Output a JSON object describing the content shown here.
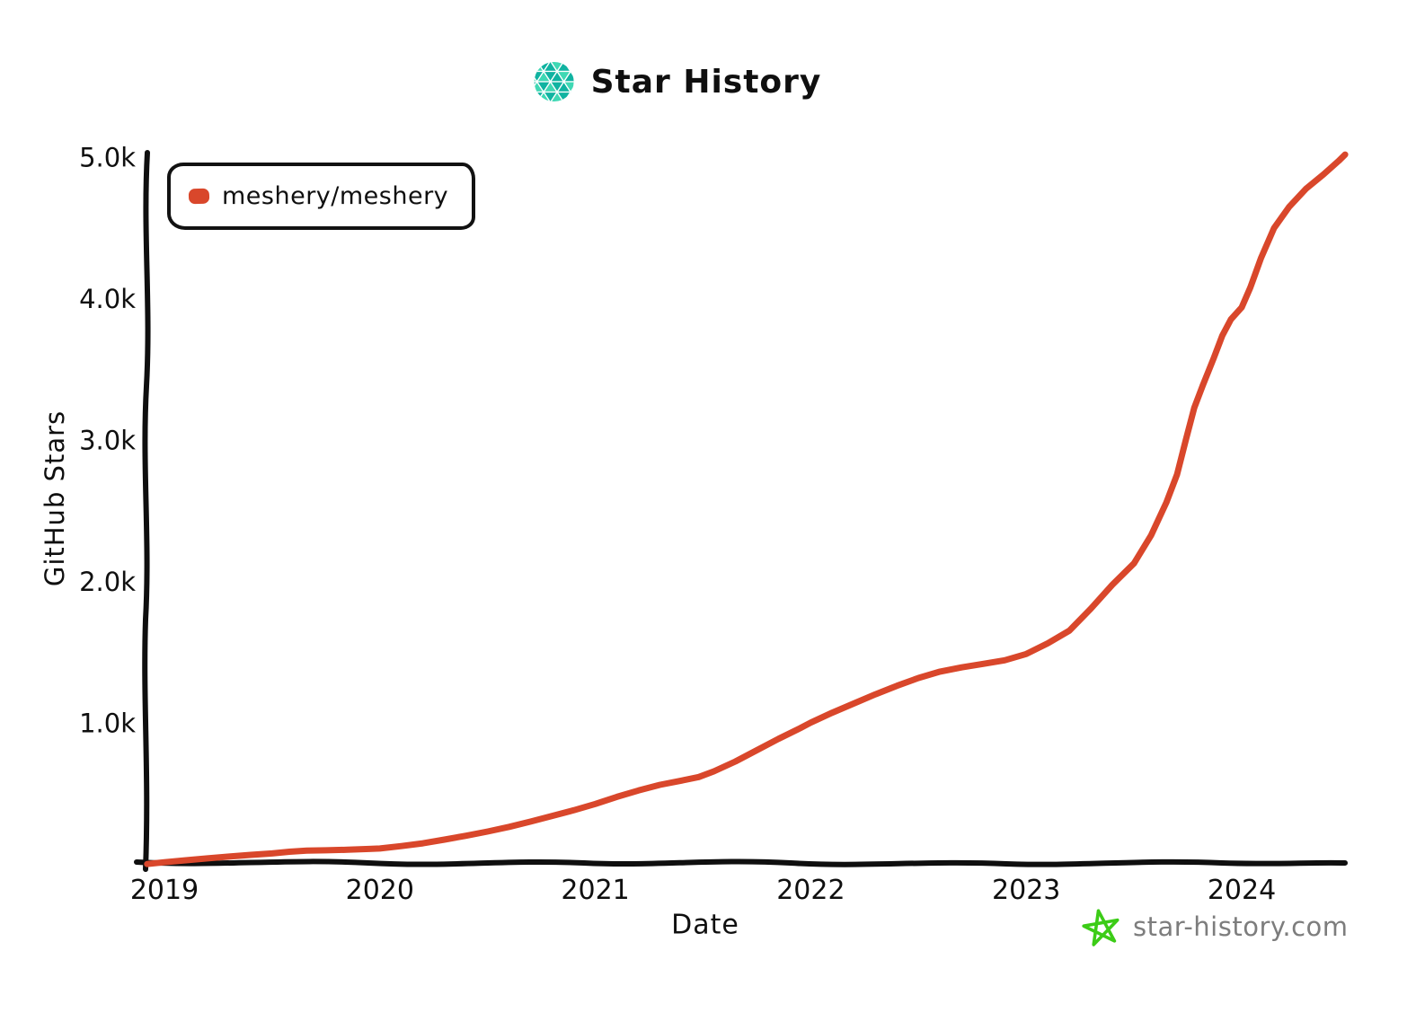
{
  "chart_data": {
    "type": "line",
    "title": "Star History",
    "xlabel": "Date",
    "ylabel": "GitHub Stars",
    "grid": false,
    "legend_position": "top-left",
    "xlim": [
      2018.92,
      2024.55
    ],
    "ylim": [
      0,
      5080
    ],
    "x_ticks": [
      {
        "label": "2019",
        "value": 2019
      },
      {
        "label": "2020",
        "value": 2020
      },
      {
        "label": "2021",
        "value": 2021
      },
      {
        "label": "2022",
        "value": 2022
      },
      {
        "label": "2023",
        "value": 2023
      },
      {
        "label": "2024",
        "value": 2024
      }
    ],
    "y_ticks": [
      {
        "label": "1.0k",
        "value": 1000
      },
      {
        "label": "2.0k",
        "value": 2000
      },
      {
        "label": "3.0k",
        "value": 3000
      },
      {
        "label": "4.0k",
        "value": 4000
      },
      {
        "label": "5.0k",
        "value": 5000
      }
    ],
    "series": [
      {
        "name": "meshery/meshery",
        "color": "#d9472b",
        "points": [
          [
            2018.92,
            5
          ],
          [
            2019.0,
            18
          ],
          [
            2019.1,
            32
          ],
          [
            2019.2,
            45
          ],
          [
            2019.3,
            58
          ],
          [
            2019.4,
            70
          ],
          [
            2019.5,
            80
          ],
          [
            2019.58,
            92
          ],
          [
            2019.66,
            100
          ],
          [
            2019.75,
            102
          ],
          [
            2019.85,
            106
          ],
          [
            2019.95,
            112
          ],
          [
            2020.0,
            115
          ],
          [
            2020.1,
            132
          ],
          [
            2020.2,
            152
          ],
          [
            2020.3,
            178
          ],
          [
            2020.4,
            205
          ],
          [
            2020.5,
            235
          ],
          [
            2020.6,
            268
          ],
          [
            2020.7,
            305
          ],
          [
            2020.8,
            345
          ],
          [
            2020.9,
            385
          ],
          [
            2021.0,
            430
          ],
          [
            2021.1,
            480
          ],
          [
            2021.2,
            525
          ],
          [
            2021.3,
            565
          ],
          [
            2021.4,
            595
          ],
          [
            2021.48,
            620
          ],
          [
            2021.55,
            660
          ],
          [
            2021.65,
            730
          ],
          [
            2021.75,
            810
          ],
          [
            2021.85,
            890
          ],
          [
            2021.95,
            965
          ],
          [
            2022.0,
            1005
          ],
          [
            2022.1,
            1075
          ],
          [
            2022.2,
            1140
          ],
          [
            2022.3,
            1205
          ],
          [
            2022.4,
            1265
          ],
          [
            2022.5,
            1320
          ],
          [
            2022.6,
            1365
          ],
          [
            2022.7,
            1395
          ],
          [
            2022.8,
            1420
          ],
          [
            2022.9,
            1445
          ],
          [
            2023.0,
            1490
          ],
          [
            2023.1,
            1565
          ],
          [
            2023.2,
            1655
          ],
          [
            2023.3,
            1810
          ],
          [
            2023.4,
            1980
          ],
          [
            2023.5,
            2130
          ],
          [
            2023.58,
            2330
          ],
          [
            2023.65,
            2560
          ],
          [
            2023.7,
            2760
          ],
          [
            2023.74,
            3000
          ],
          [
            2023.78,
            3230
          ],
          [
            2023.82,
            3390
          ],
          [
            2023.87,
            3580
          ],
          [
            2023.91,
            3740
          ],
          [
            2023.95,
            3855
          ],
          [
            2024.0,
            3940
          ],
          [
            2024.04,
            4080
          ],
          [
            2024.09,
            4290
          ],
          [
            2024.15,
            4500
          ],
          [
            2024.22,
            4650
          ],
          [
            2024.3,
            4780
          ],
          [
            2024.38,
            4880
          ],
          [
            2024.45,
            4975
          ],
          [
            2024.48,
            5020
          ]
        ]
      }
    ]
  },
  "footer": {
    "label": "star-history.com"
  },
  "colors": {
    "axis": "#0f0f0f",
    "series_red": "#d9472b",
    "logo_teal_dark": "#10b3a1",
    "logo_teal_light": "#3fd8b4",
    "footer_star_green": "#3ccc17",
    "footer_text_gray": "#7d7d7d"
  }
}
